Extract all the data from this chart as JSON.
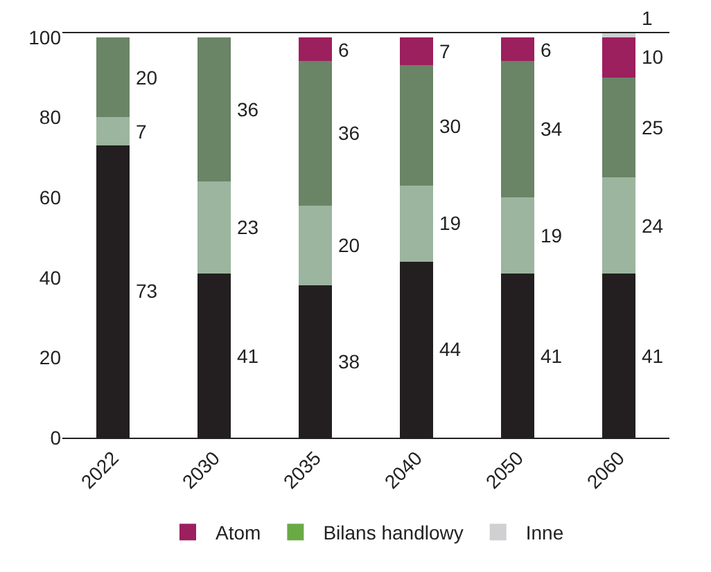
{
  "chart_data": {
    "type": "bar",
    "stacked": true,
    "categories": [
      "2022",
      "2030",
      "2035",
      "2040",
      "2050",
      "2060"
    ],
    "series": [
      {
        "color": "#231f20",
        "values": [
          73,
          41,
          38,
          44,
          41,
          41
        ]
      },
      {
        "color": "#9bb59e",
        "values": [
          7,
          23,
          20,
          19,
          19,
          24
        ]
      },
      {
        "color": "#6a8466",
        "values": [
          20,
          36,
          36,
          30,
          34,
          25
        ]
      },
      {
        "name": "Atom",
        "color": "#9c1f5e",
        "values": [
          null,
          null,
          6,
          7,
          6,
          10
        ]
      },
      {
        "name": "Bilans handlowy",
        "color": "#6aaa45",
        "values": [
          null,
          null,
          null,
          null,
          null,
          null
        ]
      },
      {
        "name": "Inne",
        "color": "#d0d0d2",
        "values": [
          null,
          null,
          null,
          null,
          null,
          1
        ]
      }
    ],
    "ylim": [
      0,
      101
    ],
    "yticks": [
      0,
      20,
      40,
      60,
      80,
      100
    ],
    "grid": false,
    "data_labels": true,
    "legend": "bottom"
  }
}
